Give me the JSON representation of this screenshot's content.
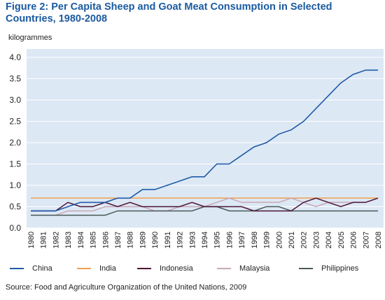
{
  "chart_data": {
    "type": "line",
    "title": "Figure 2: Per Capita Sheep and Goat Meat Consumption in Selected Countries, 1980-2008",
    "ylabel": "kilogrammes",
    "xlabel": "",
    "source": "Source: Food and Agriculture Organization of the United Nations, 2009",
    "ylim": [
      0,
      4.0
    ],
    "yticks": [
      "0.0",
      "0.5",
      "1.0",
      "1.5",
      "2.0",
      "2.5",
      "3.0",
      "3.5",
      "4.0"
    ],
    "categories": [
      "1980",
      "1981",
      "1982",
      "1983",
      "1984",
      "1985",
      "1986",
      "1987",
      "1988",
      "1989",
      "1990",
      "1991",
      "1992",
      "1993",
      "1994",
      "1995",
      "1996",
      "1997",
      "1998",
      "1999",
      "2000",
      "2001",
      "2002",
      "2003",
      "2004",
      "2005",
      "2006",
      "2007",
      "2008"
    ],
    "grid": true,
    "legend_position": "bottom",
    "series": [
      {
        "name": "China",
        "color": "#1e5aa8",
        "values": [
          0.4,
          0.4,
          0.4,
          0.5,
          0.6,
          0.6,
          0.6,
          0.7,
          0.7,
          0.9,
          0.9,
          1.0,
          1.1,
          1.2,
          1.2,
          1.5,
          1.5,
          1.7,
          1.9,
          2.0,
          2.2,
          2.3,
          2.5,
          2.8,
          3.1,
          3.4,
          3.6,
          3.7,
          3.7
        ]
      },
      {
        "name": "India",
        "color": "#f0a050",
        "values": [
          0.7,
          0.7,
          0.7,
          0.7,
          0.7,
          0.7,
          0.7,
          0.7,
          0.7,
          0.7,
          0.7,
          0.7,
          0.7,
          0.7,
          0.7,
          0.7,
          0.7,
          0.7,
          0.7,
          0.7,
          0.7,
          0.7,
          0.7,
          0.7,
          0.7,
          0.7,
          0.7,
          0.7,
          0.7
        ]
      },
      {
        "name": "Indonesia",
        "color": "#4a1535",
        "values": [
          0.4,
          0.4,
          0.4,
          0.6,
          0.5,
          0.5,
          0.6,
          0.5,
          0.6,
          0.5,
          0.5,
          0.5,
          0.5,
          0.6,
          0.5,
          0.5,
          0.5,
          0.5,
          0.4,
          0.4,
          0.4,
          0.4,
          0.6,
          0.7,
          0.6,
          0.5,
          0.6,
          0.6,
          0.7
        ]
      },
      {
        "name": "Malaysia",
        "color": "#c8a8b4",
        "values": [
          0.3,
          0.3,
          0.3,
          0.4,
          0.4,
          0.4,
          0.5,
          0.5,
          0.5,
          0.5,
          0.4,
          0.4,
          0.5,
          0.5,
          0.5,
          0.6,
          0.7,
          0.6,
          0.6,
          0.6,
          0.6,
          0.7,
          0.6,
          0.5,
          0.6,
          0.6,
          0.6,
          0.6,
          0.7
        ]
      },
      {
        "name": "Philippines",
        "color": "#4a5a58",
        "values": [
          0.3,
          0.3,
          0.3,
          0.3,
          0.3,
          0.3,
          0.3,
          0.4,
          0.4,
          0.4,
          0.4,
          0.4,
          0.4,
          0.4,
          0.5,
          0.5,
          0.4,
          0.4,
          0.4,
          0.5,
          0.5,
          0.4,
          0.4,
          0.4,
          0.4,
          0.4,
          0.4,
          0.4,
          0.4
        ]
      }
    ]
  }
}
